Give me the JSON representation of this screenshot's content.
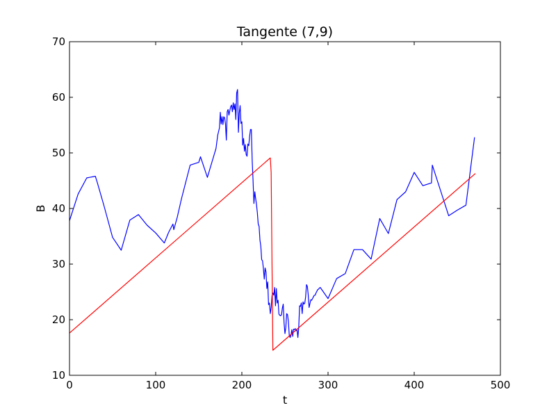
{
  "chart_data": {
    "type": "line",
    "title": "Tangente (7,9)",
    "xlabel": "t",
    "ylabel": "B",
    "xlim": [
      0,
      500
    ],
    "ylim": [
      10,
      70
    ],
    "xticks": [
      "0",
      "100",
      "200",
      "300",
      "400",
      "500"
    ],
    "yticks": [
      "10",
      "20",
      "30",
      "40",
      "50",
      "60",
      "70"
    ],
    "grid": false,
    "series": [
      {
        "color": "#0000ff",
        "x": [
          0,
          10,
          20,
          30,
          32,
          40,
          50,
          60,
          70,
          80,
          90,
          100,
          110,
          115,
          120,
          121,
          125,
          130,
          140,
          150,
          152,
          160,
          170,
          172,
          174,
          175,
          176,
          177,
          178,
          179,
          180,
          181,
          182,
          183,
          184,
          185,
          186,
          187,
          188,
          189,
          190,
          191,
          192,
          193,
          194,
          195,
          196,
          197,
          198,
          199,
          200,
          201,
          202,
          203,
          204,
          205,
          206,
          207,
          208,
          209,
          210,
          211,
          212,
          213,
          214,
          215,
          216,
          217,
          218,
          219,
          220,
          221,
          222,
          223,
          224,
          225,
          226,
          227,
          228,
          229,
          230,
          231,
          232,
          233,
          234,
          235,
          236,
          237,
          238,
          239,
          240,
          241,
          242,
          243,
          244,
          245,
          246,
          247,
          248,
          249,
          250,
          251,
          252,
          253,
          254,
          255,
          256,
          257,
          258,
          259,
          260,
          261,
          262,
          263,
          264,
          265,
          266,
          267,
          268,
          269,
          270,
          271,
          272,
          273,
          274,
          275,
          276,
          277,
          278,
          279,
          280,
          281,
          282,
          283,
          284,
          285,
          286,
          287,
          288,
          289,
          290,
          291,
          300,
          310,
          320,
          330,
          340,
          350,
          360,
          370,
          380,
          390,
          400,
          410,
          420,
          421,
          440,
          450,
          460,
          470
        ],
        "y": [
          37.8,
          42.6,
          45.5,
          45.8,
          44.8,
          40.5,
          34.8,
          32.5,
          37.9,
          38.9,
          37,
          35.6,
          33.8,
          35.7,
          37.2,
          36.2,
          38.4,
          41.8,
          47.8,
          48.3,
          49.3,
          45.6,
          50.8,
          53.2,
          54.5,
          57.3,
          55.2,
          56.5,
          55.1,
          56.5,
          56.3,
          55.2,
          52.3,
          57.4,
          57.8,
          56.8,
          57.6,
          58.3,
          58.6,
          57.4,
          59,
          57.8,
          58.8,
          56,
          60.8,
          61.4,
          53.7,
          57.2,
          58.5,
          55.3,
          55.6,
          51.4,
          52.6,
          50.3,
          51.5,
          49.7,
          49.4,
          51.6,
          51.3,
          53,
          54.2,
          54.2,
          48.6,
          45,
          40.9,
          43,
          41.8,
          40.7,
          39.2,
          37.2,
          36.8,
          34.3,
          33.2,
          30.8,
          30.6,
          29.2,
          27.3,
          29.3,
          28.6,
          25.6,
          26.8,
          22.7,
          23,
          21.1,
          22.2,
          24.3,
          24.8,
          24.4,
          25.8,
          22.5,
          25.6,
          23,
          23.5,
          21,
          20.8,
          20.7,
          20.9,
          22.1,
          22.8,
          19.4,
          17.5,
          18.6,
          21.1,
          20.9,
          19.7,
          17.2,
          16.8,
          17.2,
          18.2,
          17,
          18.3,
          18.2,
          18.4,
          18,
          18.3,
          16.8,
          18.6,
          22.5,
          22.4,
          23,
          21.1,
          23.2,
          22.8,
          23,
          24.1,
          26.3,
          26,
          24.5,
          22.2,
          22.9,
          23.6,
          23.5,
          23.8,
          24.1,
          24.4,
          24.4,
          24.8,
          25.1,
          25.4,
          25.5,
          25.7,
          25.8,
          23.8,
          27.4,
          28.3,
          32.6,
          32.6,
          30.9,
          38.2,
          35.5,
          41.6,
          43,
          46.5,
          44.1,
          44.6,
          47.8,
          38.7,
          39.7,
          40.6,
          52.8
        ]
      },
      {
        "color": "#ff0000",
        "x": [
          0,
          233,
          234,
          235,
          236,
          471
        ],
        "y": [
          17.6,
          49.1,
          46.5,
          30,
          14.5,
          46.3
        ]
      }
    ]
  }
}
